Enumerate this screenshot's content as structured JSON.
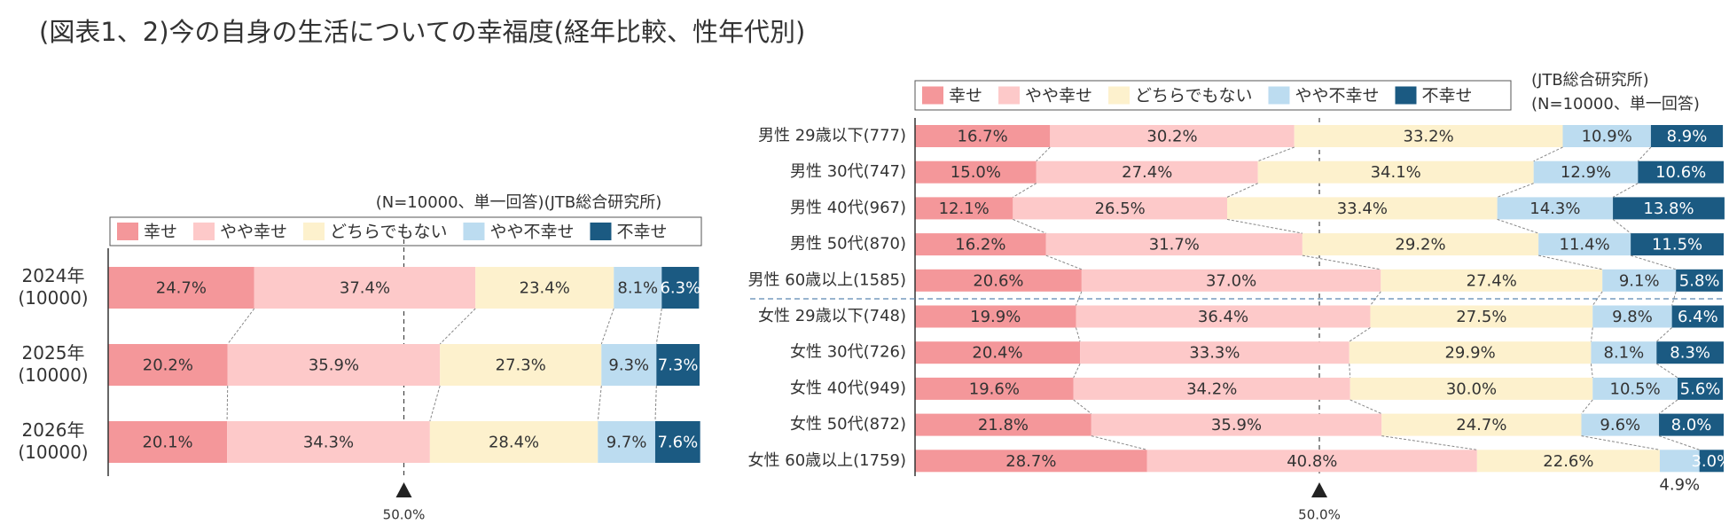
{
  "title": "(図表1、2)今の自身の生活についての幸福度(経年比較、性年代別)",
  "chart_data": [
    {
      "type": "bar",
      "orientation": "horizontal",
      "stacked": true,
      "note": [
        "(N=10000、単一回答)(JTB総合研究所)"
      ],
      "categories": [
        [
          "2024年",
          "(10000)"
        ],
        [
          "2025年",
          "(10000)"
        ],
        [
          "2026年",
          "(10000)"
        ]
      ],
      "xlim": [
        0,
        100
      ],
      "marker": {
        "value": 50,
        "label": "50.0%"
      },
      "series": [
        {
          "name": "幸せ",
          "color": "#f4979a",
          "values": [
            24.7,
            20.2,
            20.1
          ],
          "value_labels": [
            "24.7%",
            "20.2%",
            "20.1%"
          ]
        },
        {
          "name": "やや幸せ",
          "color": "#fdc9c9",
          "values": [
            37.4,
            35.9,
            34.3
          ],
          "value_labels": [
            "37.4%",
            "35.9%",
            "34.3%"
          ]
        },
        {
          "name": "どちらでもない",
          "color": "#fdf1cd",
          "values": [
            23.4,
            27.3,
            28.4
          ],
          "value_labels": [
            "23.4%",
            "27.3%",
            "28.4%"
          ]
        },
        {
          "name": "やや不幸せ",
          "color": "#bcdcf0",
          "values": [
            8.1,
            9.3,
            9.7
          ],
          "value_labels": [
            "8.1%",
            "9.3%",
            "9.7%"
          ]
        },
        {
          "name": "不幸せ",
          "color": "#1b5a82",
          "values": [
            6.3,
            7.3,
            7.6
          ],
          "value_labels": [
            "6.3%",
            "7.3%",
            "7.6%"
          ]
        }
      ]
    },
    {
      "type": "bar",
      "orientation": "horizontal",
      "stacked": true,
      "note": [
        "(JTB総合研究所)",
        "(N=10000、単一回答)"
      ],
      "categories": [
        "男性 29歳以下(777)",
        "男性 30代(747)",
        "男性 40代(967)",
        "男性 50代(870)",
        "男性 60歳以上(1585)",
        "女性 29歳以下(748)",
        "女性 30代(726)",
        "女性 40代(949)",
        "女性 50代(872)",
        "女性 60歳以上(1759)"
      ],
      "xlim": [
        0,
        100
      ],
      "marker": {
        "value": 50,
        "label": "50.0%"
      },
      "series": [
        {
          "name": "幸せ",
          "color": "#f4979a",
          "values": [
            16.7,
            15.0,
            12.1,
            16.2,
            20.6,
            19.9,
            20.4,
            19.6,
            21.8,
            28.7
          ],
          "value_labels": [
            "16.7%",
            "15.0%",
            "12.1%",
            "16.2%",
            "20.6%",
            "19.9%",
            "20.4%",
            "19.6%",
            "21.8%",
            "28.7%"
          ]
        },
        {
          "name": "やや幸せ",
          "color": "#fdc9c9",
          "values": [
            30.2,
            27.4,
            26.5,
            31.7,
            37.0,
            36.4,
            33.3,
            34.2,
            35.9,
            40.8
          ],
          "value_labels": [
            "30.2%",
            "27.4%",
            "26.5%",
            "31.7%",
            "37.0%",
            "36.4%",
            "33.3%",
            "34.2%",
            "35.9%",
            "40.8%"
          ]
        },
        {
          "name": "どちらでもない",
          "color": "#fdf1cd",
          "values": [
            33.2,
            34.1,
            33.4,
            29.2,
            27.4,
            27.5,
            29.9,
            30.0,
            24.7,
            22.6
          ],
          "value_labels": [
            "33.2%",
            "34.1%",
            "33.4%",
            "29.2%",
            "27.4%",
            "27.5%",
            "29.9%",
            "30.0%",
            "24.7%",
            "22.6%"
          ]
        },
        {
          "name": "やや不幸せ",
          "color": "#bcdcf0",
          "values": [
            10.9,
            12.9,
            14.3,
            11.4,
            9.1,
            9.8,
            8.1,
            10.5,
            9.6,
            4.9
          ],
          "value_labels": [
            "10.9%",
            "12.9%",
            "14.3%",
            "11.4%",
            "9.1%",
            "9.8%",
            "8.1%",
            "10.5%",
            "9.6%",
            "4.9%"
          ]
        },
        {
          "name": "不幸せ",
          "color": "#1b5a82",
          "values": [
            8.9,
            10.6,
            13.8,
            11.5,
            5.8,
            6.4,
            8.3,
            5.6,
            8.0,
            3.0
          ],
          "value_labels": [
            "8.9%",
            "10.6%",
            "13.8%",
            "11.5%",
            "5.8%",
            "6.4%",
            "8.3%",
            "5.6%",
            "8.0%",
            "3.0%"
          ]
        }
      ]
    }
  ]
}
